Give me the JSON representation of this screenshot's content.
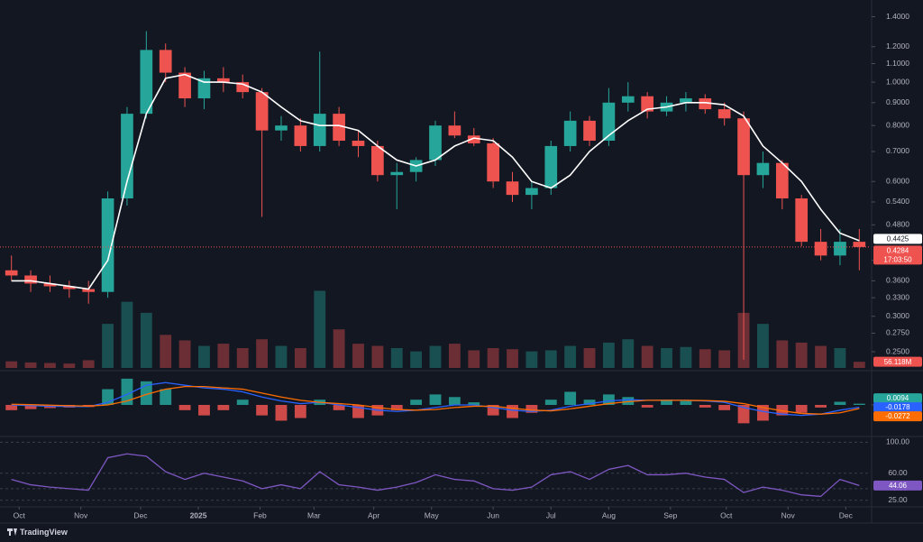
{
  "chart_data": [
    {
      "type": "candlestick",
      "log_scale": true,
      "grid": false,
      "xlim": [
        0,
        45
      ],
      "xticks": [
        {
          "value": 0.9,
          "label": "Oct"
        },
        {
          "value": 4.1,
          "label": "Nov"
        },
        {
          "value": 7.2,
          "label": "Dec"
        },
        {
          "value": 10.2,
          "label": "2025"
        },
        {
          "value": 13.4,
          "label": "Feb"
        },
        {
          "value": 16.2,
          "label": "Mar"
        },
        {
          "value": 19.3,
          "label": "Apr"
        },
        {
          "value": 22.3,
          "label": "May"
        },
        {
          "value": 25.5,
          "label": "Jun"
        },
        {
          "value": 28.5,
          "label": "Jul"
        },
        {
          "value": 31.5,
          "label": "Aug"
        },
        {
          "value": 34.7,
          "label": "Sep"
        },
        {
          "value": 37.6,
          "label": "Oct"
        },
        {
          "value": 40.8,
          "label": "Nov"
        },
        {
          "value": 43.8,
          "label": "Dec"
        }
      ],
      "ylim": [
        0.23,
        1.47
      ],
      "yticks": [
        {
          "value": 1.4,
          "label": "1.4000"
        },
        {
          "value": 1.2,
          "label": "1.2000"
        },
        {
          "value": 1.1,
          "label": "1.1000"
        },
        {
          "value": 1.0,
          "label": "1.0000"
        },
        {
          "value": 0.9,
          "label": "0.9000"
        },
        {
          "value": 0.8,
          "label": "0.8000"
        },
        {
          "value": 0.7,
          "label": "0.7000"
        },
        {
          "value": 0.6,
          "label": "0.6000"
        },
        {
          "value": 0.54,
          "label": "0.5400"
        },
        {
          "value": 0.48,
          "label": "0.4800"
        },
        {
          "value": 0.4,
          "label": "0.4000"
        },
        {
          "value": 0.36,
          "label": "0.3600"
        },
        {
          "value": 0.33,
          "label": "0.3300"
        },
        {
          "value": 0.3,
          "label": "0.3000"
        },
        {
          "value": 0.275,
          "label": "0.2750"
        },
        {
          "value": 0.25,
          "label": "0.2500"
        }
      ],
      "up_color": "#26a69a",
      "down_color": "#ef5350",
      "open": [
        0.38,
        0.37,
        0.355,
        0.35,
        0.345,
        0.34,
        0.55,
        0.85,
        1.18,
        1.05,
        0.92,
        1.02,
        1.0,
        0.95,
        0.78,
        0.8,
        0.72,
        0.85,
        0.74,
        0.72,
        0.62,
        0.63,
        0.67,
        0.8,
        0.76,
        0.73,
        0.6,
        0.56,
        0.58,
        0.72,
        0.82,
        0.74,
        0.9,
        0.93,
        0.86,
        0.9,
        0.92,
        0.87,
        0.83,
        0.62,
        0.66,
        0.55,
        0.44,
        0.41,
        0.44
      ],
      "high": [
        0.41,
        0.38,
        0.37,
        0.36,
        0.36,
        0.57,
        0.88,
        1.3,
        1.22,
        1.08,
        1.06,
        1.08,
        1.04,
        0.97,
        0.84,
        0.83,
        1.17,
        0.88,
        0.78,
        0.74,
        0.66,
        0.68,
        0.82,
        0.86,
        0.79,
        0.75,
        0.63,
        0.6,
        0.74,
        0.86,
        0.84,
        0.97,
        1.0,
        0.95,
        0.93,
        0.95,
        0.94,
        0.9,
        0.86,
        0.7,
        0.67,
        0.56,
        0.47,
        0.47,
        0.47
      ],
      "low": [
        0.36,
        0.34,
        0.34,
        0.33,
        0.32,
        0.33,
        0.53,
        0.83,
        1.0,
        0.88,
        0.87,
        0.95,
        0.92,
        0.5,
        0.74,
        0.7,
        0.7,
        0.72,
        0.68,
        0.6,
        0.52,
        0.6,
        0.65,
        0.75,
        0.72,
        0.58,
        0.54,
        0.52,
        0.56,
        0.7,
        0.72,
        0.72,
        0.86,
        0.83,
        0.84,
        0.86,
        0.85,
        0.8,
        0.24,
        0.58,
        0.52,
        0.43,
        0.4,
        0.39,
        0.38
      ],
      "close": [
        0.37,
        0.355,
        0.35,
        0.345,
        0.34,
        0.55,
        0.85,
        1.18,
        1.05,
        0.92,
        1.02,
        1.0,
        0.95,
        0.78,
        0.8,
        0.72,
        0.85,
        0.74,
        0.72,
        0.62,
        0.63,
        0.67,
        0.8,
        0.76,
        0.73,
        0.6,
        0.56,
        0.58,
        0.72,
        0.82,
        0.74,
        0.9,
        0.93,
        0.86,
        0.9,
        0.92,
        0.87,
        0.83,
        0.62,
        0.66,
        0.55,
        0.44,
        0.41,
        0.44,
        0.4284
      ],
      "ma": {
        "color": "#ffffff",
        "values": [
          0.36,
          0.36,
          0.355,
          0.35,
          0.345,
          0.4,
          0.6,
          0.85,
          1.02,
          1.04,
          1.0,
          1.0,
          0.99,
          0.95,
          0.88,
          0.82,
          0.8,
          0.8,
          0.78,
          0.72,
          0.67,
          0.65,
          0.67,
          0.72,
          0.75,
          0.74,
          0.68,
          0.6,
          0.58,
          0.62,
          0.7,
          0.76,
          0.82,
          0.87,
          0.88,
          0.9,
          0.9,
          0.89,
          0.84,
          0.72,
          0.66,
          0.6,
          0.52,
          0.46,
          0.4425
        ]
      },
      "volume": {
        "ylim": [
          0,
          900
        ],
        "last_label": "56.118M",
        "values": [
          60,
          50,
          45,
          40,
          70,
          400,
          600,
          500,
          300,
          250,
          200,
          220,
          180,
          260,
          200,
          180,
          700,
          350,
          220,
          200,
          180,
          150,
          200,
          220,
          160,
          180,
          170,
          150,
          160,
          200,
          180,
          230,
          260,
          200,
          180,
          190,
          170,
          160,
          500,
          400,
          250,
          230,
          200,
          180,
          56.118
        ]
      }
    },
    {
      "type": "macd",
      "ylim": [
        -0.22,
        0.22
      ],
      "yticks": [
        {
          "value": 0,
          "label": "0.0000"
        }
      ],
      "histogram": {
        "up_color": "#26a69a",
        "down_color": "#ef5350",
        "values": [
          -0.04,
          -0.032,
          -0.024,
          -0.02,
          -0.016,
          0.12,
          0.2,
          0.18,
          0.12,
          -0.04,
          -0.08,
          -0.04,
          0.04,
          -0.08,
          -0.12,
          -0.1,
          0.04,
          -0.04,
          -0.1,
          -0.08,
          -0.04,
          0.04,
          0.08,
          0.06,
          0.02,
          -0.08,
          -0.1,
          -0.06,
          0.04,
          0.1,
          0.04,
          0.08,
          0.06,
          -0.02,
          0.04,
          0.03,
          -0.02,
          -0.04,
          -0.14,
          -0.12,
          -0.08,
          -0.06,
          -0.02,
          0.024,
          0.0094
        ]
      },
      "macd": {
        "color": "#2962ff",
        "values": [
          0.0,
          -0.005,
          -0.01,
          -0.012,
          -0.013,
          0.02,
          0.08,
          0.15,
          0.17,
          0.15,
          0.13,
          0.12,
          0.1,
          0.06,
          0.03,
          0.01,
          0.02,
          0.0,
          -0.02,
          -0.04,
          -0.05,
          -0.04,
          -0.02,
          0.0,
          0.0,
          -0.02,
          -0.04,
          -0.05,
          -0.04,
          -0.01,
          0.01,
          0.03,
          0.04,
          0.035,
          0.035,
          0.035,
          0.03,
          0.02,
          -0.02,
          -0.05,
          -0.07,
          -0.08,
          -0.07,
          -0.04,
          -0.0178
        ]
      },
      "signal": {
        "color": "#ff6d00",
        "values": [
          0.005,
          0.002,
          -0.002,
          -0.006,
          -0.009,
          0.0,
          0.03,
          0.08,
          0.12,
          0.14,
          0.14,
          0.13,
          0.12,
          0.09,
          0.06,
          0.035,
          0.02,
          0.01,
          0.0,
          -0.02,
          -0.035,
          -0.04,
          -0.035,
          -0.02,
          -0.01,
          -0.01,
          -0.025,
          -0.04,
          -0.045,
          -0.03,
          -0.01,
          0.01,
          0.025,
          0.035,
          0.035,
          0.035,
          0.033,
          0.028,
          0.01,
          -0.02,
          -0.045,
          -0.065,
          -0.07,
          -0.06,
          -0.0272
        ]
      }
    },
    {
      "type": "rsi",
      "ylim": [
        20,
        104
      ],
      "grid": true,
      "yticks": [
        {
          "value": 100,
          "label": "100.00"
        },
        {
          "value": 60,
          "label": "60.00"
        },
        {
          "value": 40,
          "label": "40.00"
        },
        {
          "value": 25,
          "label": "25.00"
        }
      ],
      "color": "#7e57c2",
      "values": [
        52,
        45,
        42,
        40,
        38,
        80,
        85,
        82,
        62,
        52,
        60,
        55,
        50,
        40,
        45,
        40,
        62,
        45,
        42,
        38,
        42,
        48,
        58,
        52,
        50,
        40,
        38,
        42,
        58,
        62,
        52,
        65,
        70,
        58,
        58,
        60,
        55,
        52,
        35,
        42,
        38,
        32,
        30,
        52,
        44.06
      ]
    }
  ],
  "countdown": "17:03:50",
  "brand": "TradingView"
}
